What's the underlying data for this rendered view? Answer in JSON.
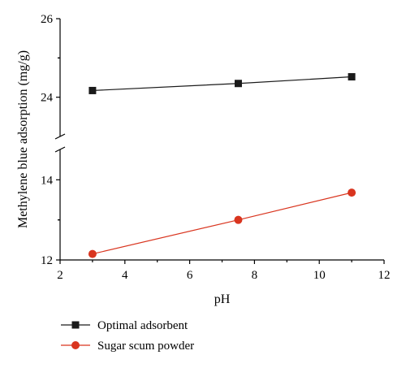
{
  "chart_data": {
    "type": "line",
    "title": "",
    "xlabel": "pH",
    "ylabel": "Methylene blue adsorption (mg/g)",
    "xlim": [
      2,
      12
    ],
    "x_ticks": [
      2,
      4,
      6,
      8,
      10,
      12
    ],
    "y_axis_break": true,
    "y_segments": [
      {
        "ylim": [
          23,
          26
        ],
        "ticks": [
          24,
          26
        ]
      },
      {
        "ylim": [
          12,
          15
        ],
        "ticks": [
          12,
          14
        ]
      }
    ],
    "grid": false,
    "legend_position": "bottom-left",
    "series": [
      {
        "name": "Optimal adsorbent",
        "color": "#1a1a1a",
        "marker": "square",
        "x": [
          3,
          7.5,
          11
        ],
        "y": [
          24.17,
          24.35,
          24.52
        ]
      },
      {
        "name": "Sugar scum powder",
        "color": "#d9351f",
        "marker": "circle",
        "x": [
          3,
          7.5,
          11
        ],
        "y": [
          12.15,
          13.0,
          13.68
        ]
      }
    ]
  }
}
